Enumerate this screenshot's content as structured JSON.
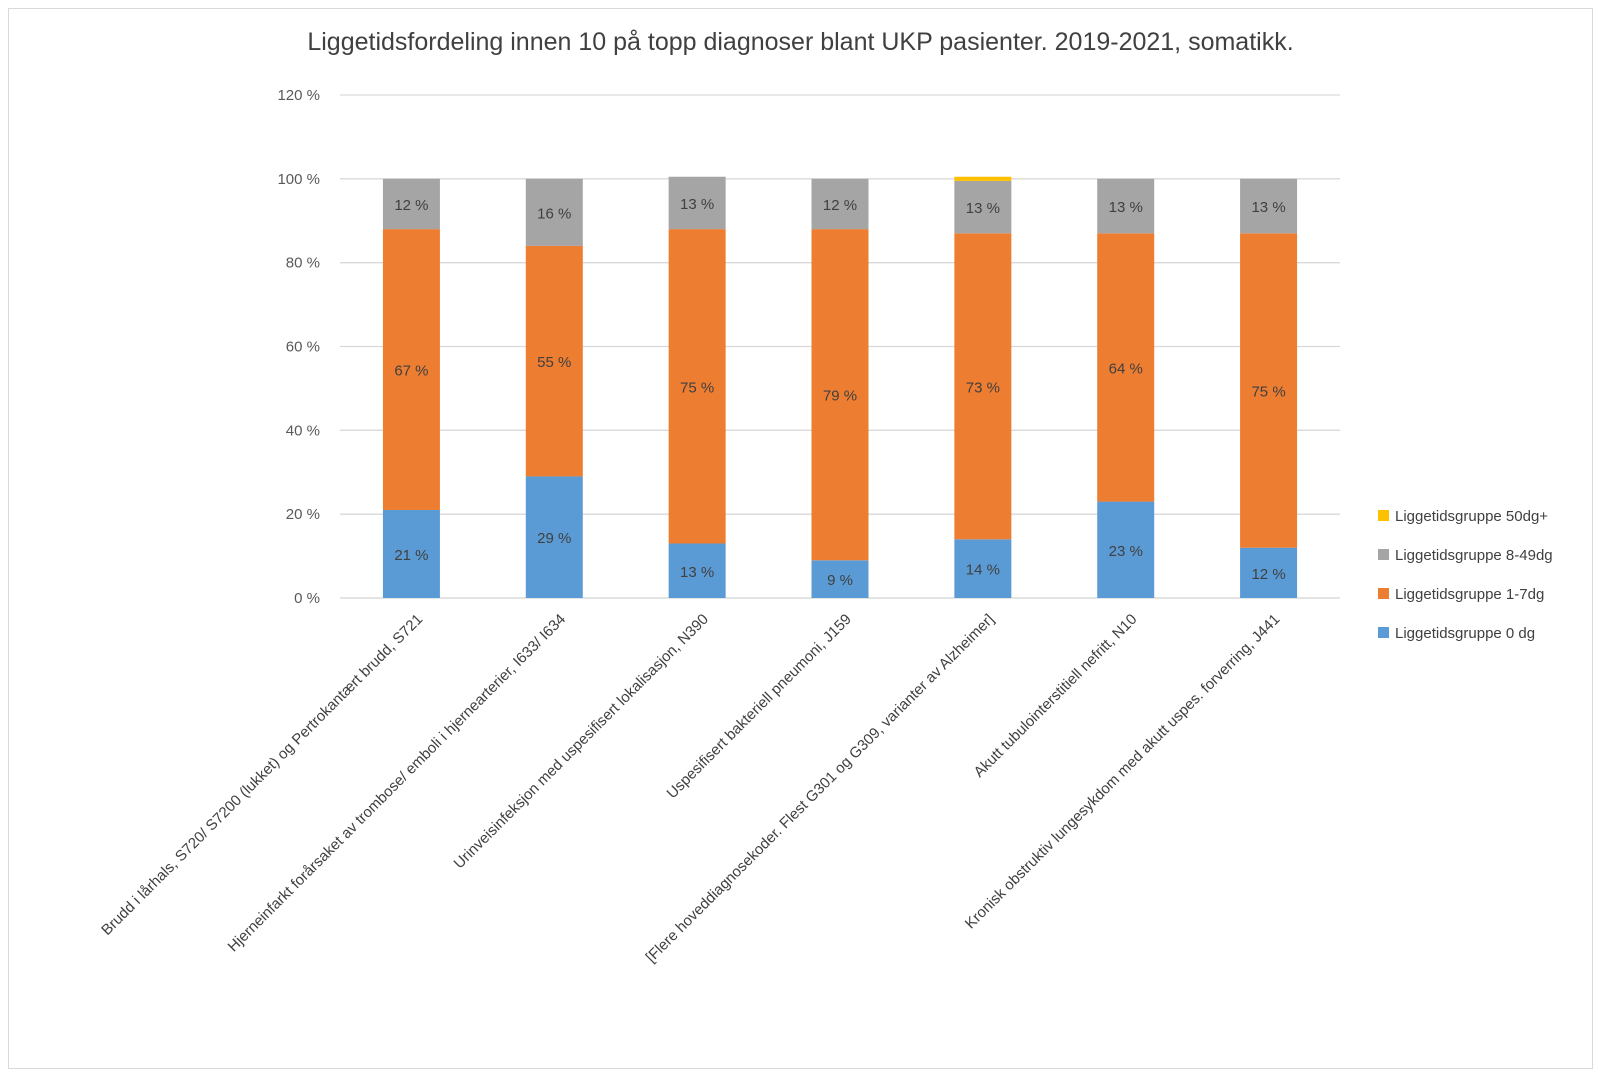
{
  "chart_data": {
    "type": "bar",
    "stacked": true,
    "title": "Liggetidsfordeling innen 10 på topp diagnoser blant UKP pasienter. 2019-2021, somatikk.",
    "xlabel": "",
    "ylabel": "",
    "ylim": [
      0,
      120
    ],
    "yticks": [
      "0 %",
      "20 %",
      "40 %",
      "60 %",
      "80 %",
      "100 %",
      "120 %"
    ],
    "grid": true,
    "legend_position": "right",
    "categories": [
      "Brudd i lårhals, S720/ S7200 (lukket) og Pertrokantært brudd, S721",
      "Hjerneinfarkt forårsaket av trombose/ emboli i hjernearterier, I633/ I634",
      "Urinveisinfeksjon med uspesifisert lokalisasjon, N390",
      "Uspesifisert bakteriell pneumoni, J159",
      "[Flere hoveddiagnosekoder. Flest G301 og G309, varianter av Alzheimer]",
      "Akutt tubulointerstitiell nefritt, N10",
      "Kronisk obstruktiv lungesykdom med akutt uspes. forverring, J441"
    ],
    "series": [
      {
        "name": "Liggetidsgruppe 0 dg",
        "color": "#5b9bd5",
        "values": [
          21,
          29,
          13,
          9,
          14,
          23,
          12
        ],
        "labels": [
          "21 %",
          "29 %",
          "13 %",
          "9 %",
          "14 %",
          "23 %",
          "12 %"
        ]
      },
      {
        "name": "Liggetidsgruppe 1-7dg",
        "color": "#ed7d31",
        "values": [
          67,
          55,
          75,
          79,
          73,
          64,
          75
        ],
        "labels": [
          "67 %",
          "55 %",
          "75 %",
          "79 %",
          "73 %",
          "64 %",
          "75 %"
        ]
      },
      {
        "name": "Liggetidsgruppe 8-49dg",
        "color": "#a5a5a5",
        "values": [
          12,
          16,
          12.5,
          12,
          12.5,
          13,
          13
        ],
        "labels": [
          "12 %",
          "16 %",
          "13 %",
          "12 %",
          "13 %",
          "13 %",
          "13 %"
        ]
      },
      {
        "name": "Liggetidsgruppe 50dg+",
        "color": "#ffc000",
        "values": [
          0,
          0,
          0,
          0,
          1,
          0,
          0
        ],
        "labels": [
          "",
          "",
          "",
          "",
          "",
          "",
          ""
        ]
      }
    ]
  }
}
